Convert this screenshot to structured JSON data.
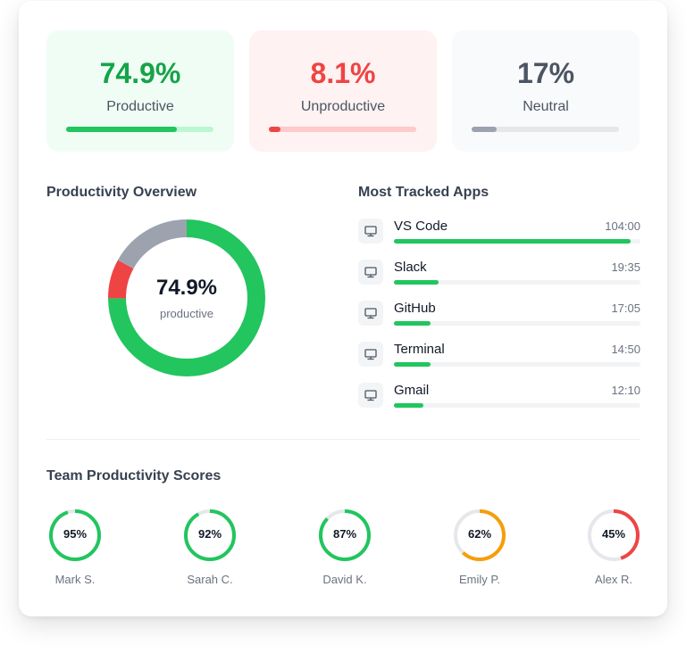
{
  "stats": [
    {
      "value": "74.9%",
      "label": "Productive",
      "fill": 0.749,
      "color": "#16a34a",
      "bg": "#f0fdf4",
      "bar": "#22c55e",
      "track": "#bbf7d0",
      "labelColor": "#4b5563"
    },
    {
      "value": "8.1%",
      "label": "Unproductive",
      "fill": 0.081,
      "color": "#ef4444",
      "bg": "#fef2f2",
      "bar": "#ef4444",
      "track": "#fecaca",
      "labelColor": "#4b5563"
    },
    {
      "value": "17%",
      "label": "Neutral",
      "fill": 0.17,
      "color": "#4b5563",
      "bg": "#f9fafb",
      "bar": "#9ca3af",
      "track": "#e5e7eb",
      "labelColor": "#4b5563"
    }
  ],
  "overview": {
    "title": "Productivity Overview",
    "center_value": "74.9%",
    "center_label": "productive",
    "segments": [
      {
        "name": "productive",
        "value": 74.9,
        "color": "#22c55e"
      },
      {
        "name": "unproductive",
        "value": 8.1,
        "color": "#ef4444"
      },
      {
        "name": "neutral",
        "value": 17,
        "color": "#9ca3af"
      }
    ]
  },
  "apps": {
    "title": "Most Tracked Apps",
    "icon": "monitor-icon",
    "items": [
      {
        "name": "VS Code",
        "time": "104:00",
        "fill": 0.96
      },
      {
        "name": "Slack",
        "time": "19:35",
        "fill": 0.18
      },
      {
        "name": "GitHub",
        "time": "17:05",
        "fill": 0.15
      },
      {
        "name": "Terminal",
        "time": "14:50",
        "fill": 0.15
      },
      {
        "name": "Gmail",
        "time": "12:10",
        "fill": 0.12
      }
    ]
  },
  "team": {
    "title": "Team Productivity Scores",
    "members": [
      {
        "name": "Mark S.",
        "score": "95%",
        "value": 95,
        "color": "#22c55e"
      },
      {
        "name": "Sarah C.",
        "score": "92%",
        "value": 92,
        "color": "#22c55e"
      },
      {
        "name": "David K.",
        "score": "87%",
        "value": 87,
        "color": "#22c55e"
      },
      {
        "name": "Emily P.",
        "score": "62%",
        "value": 62,
        "color": "#f59e0b"
      },
      {
        "name": "Alex R.",
        "score": "45%",
        "value": 45,
        "color": "#ef4444"
      }
    ]
  }
}
